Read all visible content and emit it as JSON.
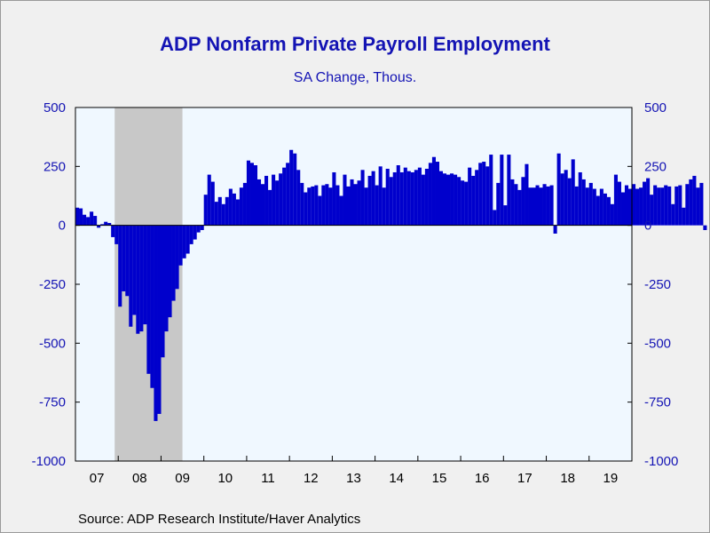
{
  "chart_data": {
    "type": "bar",
    "title": "ADP Nonfarm Private Payroll Employment",
    "subtitle": "SA Change, Thous.",
    "source": "Source:  ADP Research Institute/Haver Analytics",
    "ylim": [
      -1000,
      500
    ],
    "yticks": [
      500,
      250,
      0,
      -250,
      -500,
      -750,
      -1000
    ],
    "ytick_labels": [
      "500",
      "250",
      "0",
      "-250",
      "-500",
      "-750",
      "-1000"
    ],
    "xlim": [
      "2007-01",
      "2020-01"
    ],
    "xtick_labels": [
      "07",
      "08",
      "09",
      "10",
      "11",
      "12",
      "13",
      "14",
      "15",
      "16",
      "17",
      "18",
      "19"
    ],
    "recession": {
      "start": "2007-12",
      "end": "2009-06"
    },
    "grid": false,
    "colors": {
      "bars": "#0000cc",
      "text_blue": "#1414b4",
      "plot_bg": "#f0f8ff",
      "recession": "#c8c8c8",
      "page_bg": "#f0f0f0"
    },
    "series": [
      {
        "start": "2007-01",
        "frequency": "monthly",
        "values": [
          75,
          72,
          45,
          35,
          58,
          40,
          -10,
          5,
          15,
          10,
          -50,
          -80,
          -345,
          -280,
          -300,
          -430,
          -380,
          -460,
          -450,
          -420,
          -630,
          -690,
          -830,
          -800,
          -560,
          -450,
          -390,
          -320,
          -270,
          -170,
          -140,
          -120,
          -80,
          -60,
          -30,
          -20,
          130,
          215,
          185,
          100,
          120,
          90,
          120,
          155,
          135,
          110,
          160,
          180,
          275,
          265,
          255,
          195,
          175,
          210,
          150,
          215,
          190,
          220,
          245,
          265,
          320,
          305,
          235,
          180,
          140,
          160,
          165,
          170,
          125,
          170,
          175,
          160,
          225,
          170,
          125,
          215,
          165,
          195,
          175,
          190,
          235,
          160,
          210,
          230,
          170,
          250,
          160,
          240,
          205,
          225,
          255,
          225,
          245,
          230,
          225,
          235,
          245,
          215,
          240,
          265,
          290,
          270,
          230,
          220,
          215,
          220,
          215,
          205,
          190,
          185,
          245,
          210,
          235,
          265,
          270,
          250,
          300,
          65,
          180,
          300,
          85,
          300,
          195,
          175,
          150,
          205,
          260,
          160,
          160,
          170,
          160,
          175,
          165,
          170,
          -35,
          305,
          220,
          235,
          200,
          280,
          165,
          225,
          195,
          160,
          180,
          155,
          125,
          155,
          135,
          120,
          90,
          215,
          185,
          140,
          170,
          155,
          175,
          155,
          160,
          185,
          200,
          130,
          170,
          160,
          160,
          170,
          165,
          90,
          165,
          170,
          75,
          175,
          195,
          210,
          160,
          180,
          -20
        ]
      }
    ]
  }
}
